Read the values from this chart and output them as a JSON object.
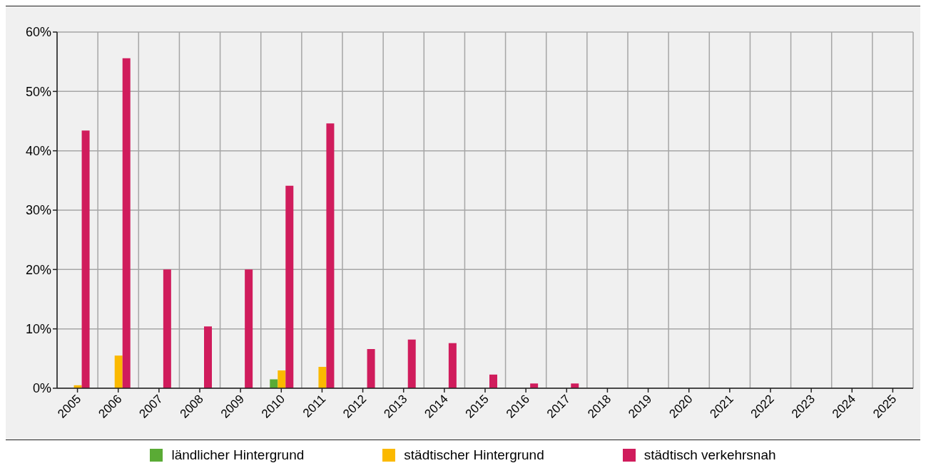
{
  "chart_data": {
    "type": "bar",
    "categories": [
      "2005",
      "2006",
      "2007",
      "2008",
      "2009",
      "2010",
      "2011",
      "2012",
      "2013",
      "2014",
      "2015",
      "2016",
      "2017",
      "2018",
      "2019",
      "2020",
      "2021",
      "2022",
      "2023",
      "2024",
      "2025"
    ],
    "series": [
      {
        "name": "ländlicher Hintergrund",
        "color": "#5aab35",
        "values": [
          null,
          null,
          null,
          null,
          null,
          1.5,
          null,
          null,
          null,
          null,
          null,
          null,
          null,
          null,
          null,
          null,
          null,
          null,
          null,
          null,
          null
        ]
      },
      {
        "name": "städtischer Hintergrund",
        "color": "#fbb900",
        "values": [
          0.5,
          5.5,
          null,
          null,
          null,
          3.0,
          3.6,
          null,
          null,
          null,
          null,
          null,
          null,
          null,
          null,
          null,
          null,
          null,
          null,
          null,
          null
        ]
      },
      {
        "name": "städtisch verkehrsnah",
        "color": "#d01c5c",
        "values": [
          43.4,
          55.6,
          20,
          10.4,
          20,
          34.1,
          44.6,
          6.6,
          8.2,
          7.6,
          2.3,
          0.8,
          0.8,
          null,
          null,
          null,
          null,
          null,
          null,
          null,
          null
        ]
      }
    ],
    "ylim": [
      0,
      60
    ],
    "yticks": [
      {
        "value": 0,
        "label": "0%"
      },
      {
        "value": 10,
        "label": "10%"
      },
      {
        "value": 20,
        "label": "20%"
      },
      {
        "value": 30,
        "label": "30%"
      },
      {
        "value": 40,
        "label": "40%"
      },
      {
        "value": 50,
        "label": "50%"
      },
      {
        "value": 60,
        "label": "60%"
      }
    ],
    "grid": true,
    "legend": "bottom"
  }
}
